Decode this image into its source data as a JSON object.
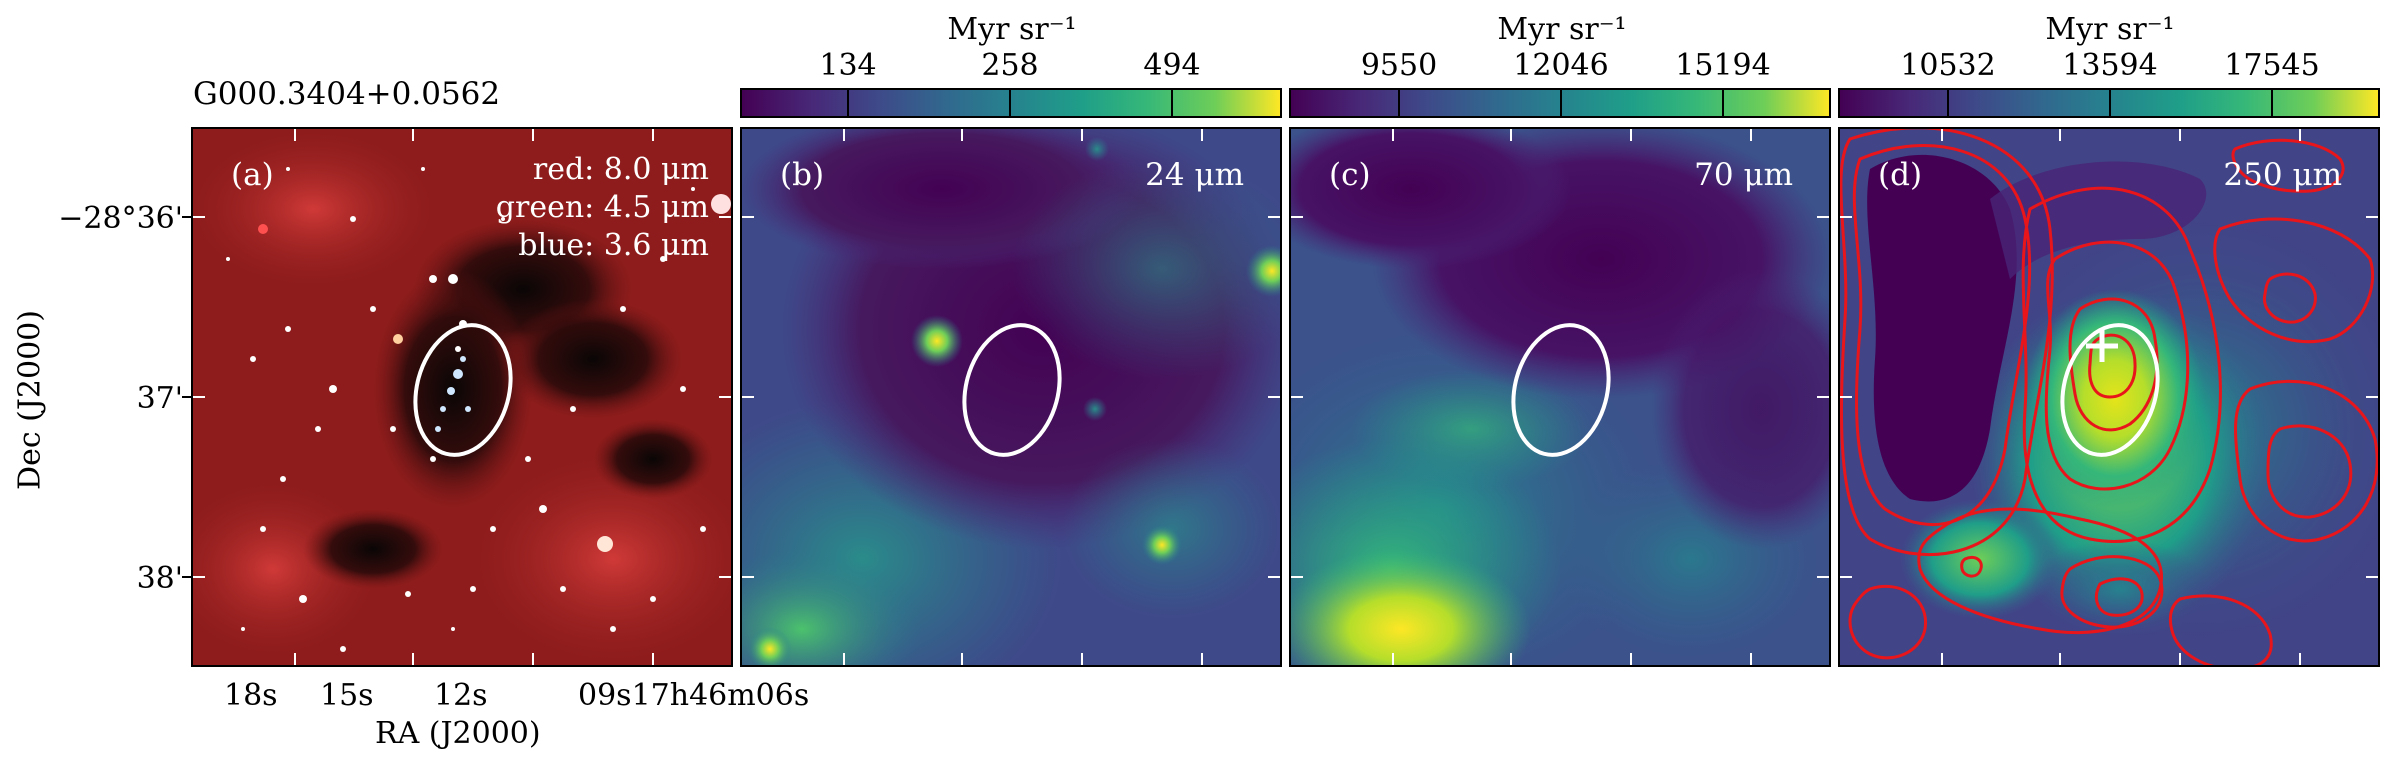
{
  "source_name": "G000.3404+0.0562",
  "panels": [
    {
      "label": "(a)",
      "rgb_legend": {
        "red": "red: 8.0 μm",
        "green": "green: 4.5 μm",
        "blue": "blue: 3.6 μm"
      }
    },
    {
      "label": "(b)",
      "wavelength": "24 μm",
      "colorbar_unit": "Myr sr⁻¹",
      "colorbar_ticks": [
        "134",
        "258",
        "494"
      ]
    },
    {
      "label": "(c)",
      "wavelength": "70 μm",
      "colorbar_unit": "Myr sr⁻¹",
      "colorbar_ticks": [
        "9550",
        "12046",
        "15194"
      ]
    },
    {
      "label": "(d)",
      "wavelength": "250 μm",
      "colorbar_unit": "Myr sr⁻¹",
      "colorbar_ticks": [
        "10532",
        "13594",
        "17545"
      ]
    }
  ],
  "axes": {
    "xlabel": "RA (J2000)",
    "ylabel": "Dec (J2000)",
    "xticks": [
      "18s",
      "15s",
      "12s",
      "09s17h46m06s"
    ],
    "yticks": [
      "−28°36'",
      "37'",
      "38'"
    ]
  },
  "colors": {
    "ellipse": "#ffffff",
    "contours": "#e8151b",
    "colormap": "viridis",
    "marker": "#ffffff"
  }
}
